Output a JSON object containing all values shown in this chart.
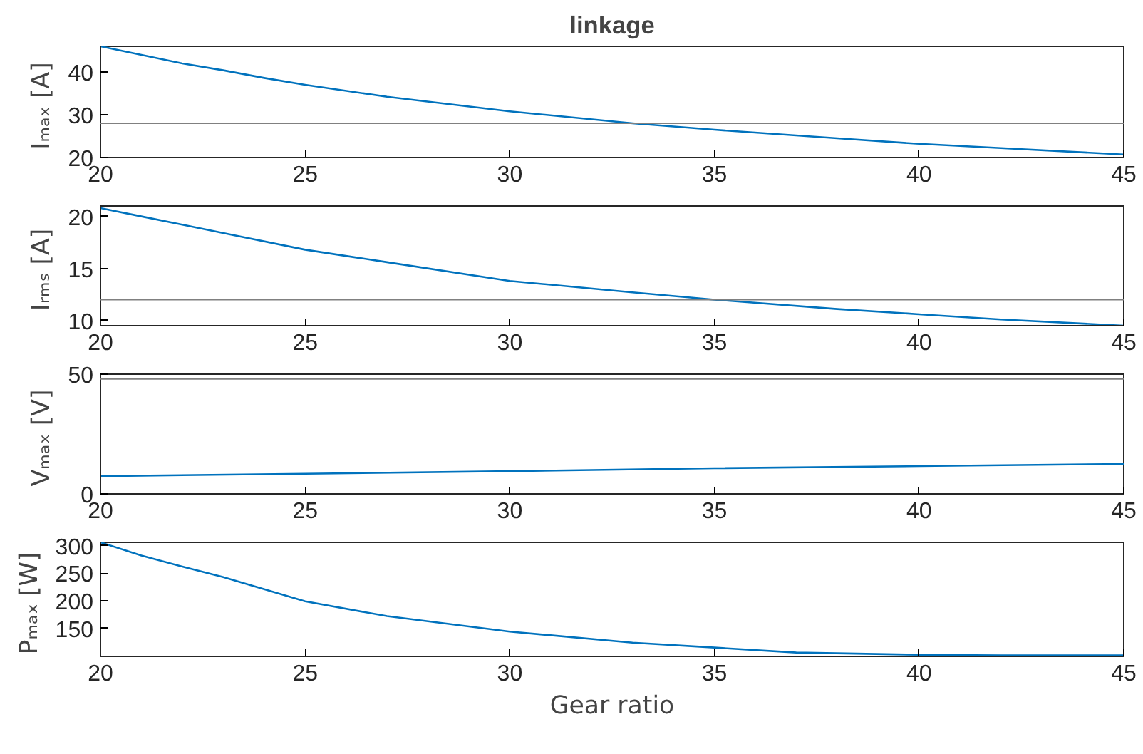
{
  "chart_data": [
    {
      "type": "line",
      "title": "linkage",
      "ylabel": "Iₘₐₓ  [A]",
      "x": [
        20,
        21,
        22,
        23,
        24,
        25,
        27,
        30,
        33,
        35,
        38,
        40,
        42,
        45
      ],
      "series": [
        {
          "color": "#0072bd",
          "values": [
            46,
            44,
            42,
            40.4,
            38.6,
            37,
            34.2,
            30.8,
            28,
            26.5,
            24.5,
            23.2,
            22.2,
            20.7
          ]
        }
      ],
      "xlim": [
        20,
        45
      ],
      "xticks": [
        20,
        25,
        30,
        35,
        40,
        45
      ],
      "ylim": [
        20,
        46
      ],
      "yticks": [
        20,
        30,
        40
      ],
      "ref_lines": [
        {
          "axis": "y",
          "value": 28,
          "color": "#808080"
        }
      ],
      "grid": false
    },
    {
      "type": "line",
      "ylabel": "Iᵣₘₛ  [A]",
      "x": [
        20,
        21,
        22,
        23,
        25,
        27,
        30,
        33,
        35,
        38,
        40,
        42,
        45
      ],
      "series": [
        {
          "color": "#0072bd",
          "values": [
            20.8,
            20,
            19.2,
            18.4,
            16.8,
            15.6,
            13.8,
            12.7,
            12,
            11.1,
            10.6,
            10.1,
            9.5
          ]
        }
      ],
      "xlim": [
        20,
        45
      ],
      "xticks": [
        20,
        25,
        30,
        35,
        40,
        45
      ],
      "ylim": [
        9.5,
        21
      ],
      "yticks": [
        10,
        15,
        20
      ],
      "ref_lines": [
        {
          "axis": "y",
          "value": 12,
          "color": "#808080"
        }
      ],
      "grid": false
    },
    {
      "type": "line",
      "ylabel": "Vₘₐₓ  [V]",
      "x": [
        20,
        25,
        30,
        35,
        40,
        45
      ],
      "series": [
        {
          "color": "#0072bd",
          "values": [
            7.4,
            8.4,
            9.5,
            10.7,
            11.6,
            12.5
          ]
        }
      ],
      "xlim": [
        20,
        45
      ],
      "xticks": [
        20,
        25,
        30,
        35,
        40,
        45
      ],
      "ylim": [
        0,
        50
      ],
      "yticks": [
        0,
        50
      ],
      "ref_lines": [
        {
          "axis": "y",
          "value": 48,
          "color": "#808080"
        }
      ],
      "grid": false
    },
    {
      "type": "line",
      "ylabel": "Pₘₐₓ  [W]",
      "xlabel": "Gear ratio",
      "x": [
        20,
        21,
        22,
        23,
        25,
        27,
        30,
        33,
        35,
        37,
        40,
        42,
        45
      ],
      "series": [
        {
          "color": "#0072bd",
          "values": [
            306,
            282,
            262,
            243,
            199,
            172,
            144,
            124,
            115,
            106,
            102,
            101,
            101
          ]
        }
      ],
      "xlim": [
        20,
        45
      ],
      "xticks": [
        20,
        25,
        30,
        35,
        40,
        45
      ],
      "ylim": [
        99,
        306
      ],
      "yticks": [
        150,
        200,
        250,
        300
      ],
      "grid": false
    }
  ]
}
